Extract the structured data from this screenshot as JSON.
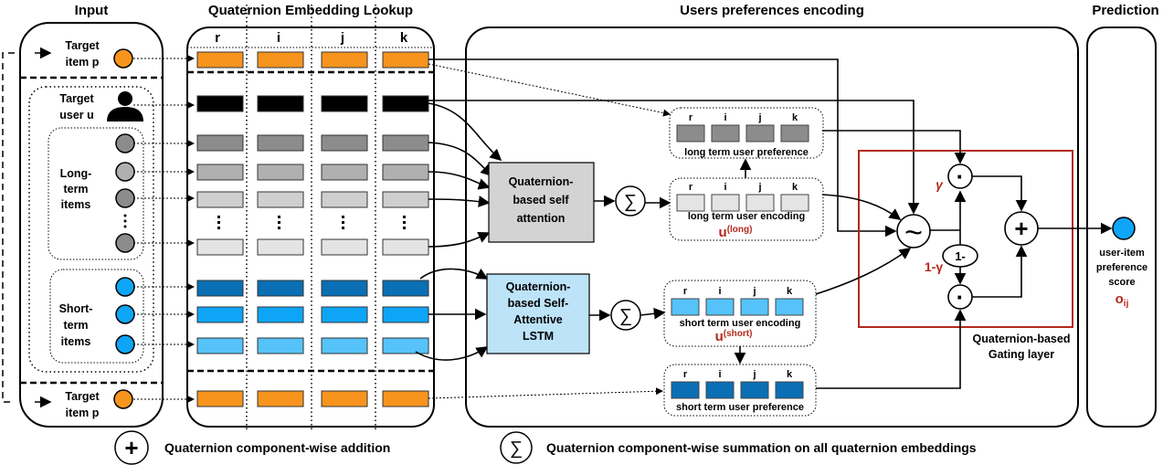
{
  "headings": {
    "input": "Input",
    "lookup": "Quaternion Embedding Lookup",
    "encoding": "Users preferences encoding",
    "prediction": "Prediction"
  },
  "components": [
    "r",
    "i",
    "j",
    "k"
  ],
  "input": {
    "target_item": [
      "Target",
      "item p"
    ],
    "target_user": [
      "Target",
      "user u"
    ],
    "long_term": [
      "Long-",
      "term",
      "items"
    ],
    "short_term": [
      "Short-",
      "term",
      "items"
    ]
  },
  "modules": {
    "self_attention": [
      "Quaternion-",
      "based self",
      "attention"
    ],
    "lstm": [
      "Quaternion-",
      "based Self-",
      "Attentive",
      "LSTM"
    ],
    "sum_symbol": "∑"
  },
  "boxes": {
    "long_pref": "long term user preference",
    "long_enc": "long term user encoding",
    "long_var": "u",
    "long_sup": "(long)",
    "short_enc": "short term user encoding",
    "short_var": "u",
    "short_sup": "(short)",
    "short_pref": "short term user preference"
  },
  "gating": {
    "gamma": "γ",
    "one_minus_gamma": "1-γ",
    "one_minus": "1-",
    "dot": "·",
    "plus": "+",
    "tilde": "~",
    "label": [
      "Quaternion-based",
      "Gating layer"
    ]
  },
  "prediction": {
    "label": [
      "user-item",
      "preference",
      "score"
    ],
    "var": "o",
    "sub": "ij"
  },
  "legend": {
    "plus_symbol": "+",
    "plus_text": "Quaternion component-wise addition",
    "sum_symbol": "∑",
    "sum_text": "Quaternion component-wise summation on all quaternion embeddings"
  },
  "colors": {
    "orange": "#f7941d",
    "black": "#000000",
    "gray1": "#8c8c8c",
    "gray2": "#b0b0b0",
    "gray3": "#cfcfcf",
    "gray4": "#e4e4e4",
    "blue_dark": "#0a6fb5",
    "blue_mid": "#0ea5f7",
    "blue_light": "#55c3fa",
    "gating_red": "#b22a1e",
    "attention_fill": "#d3d3d3",
    "lstm_fill": "#bde3f8"
  }
}
